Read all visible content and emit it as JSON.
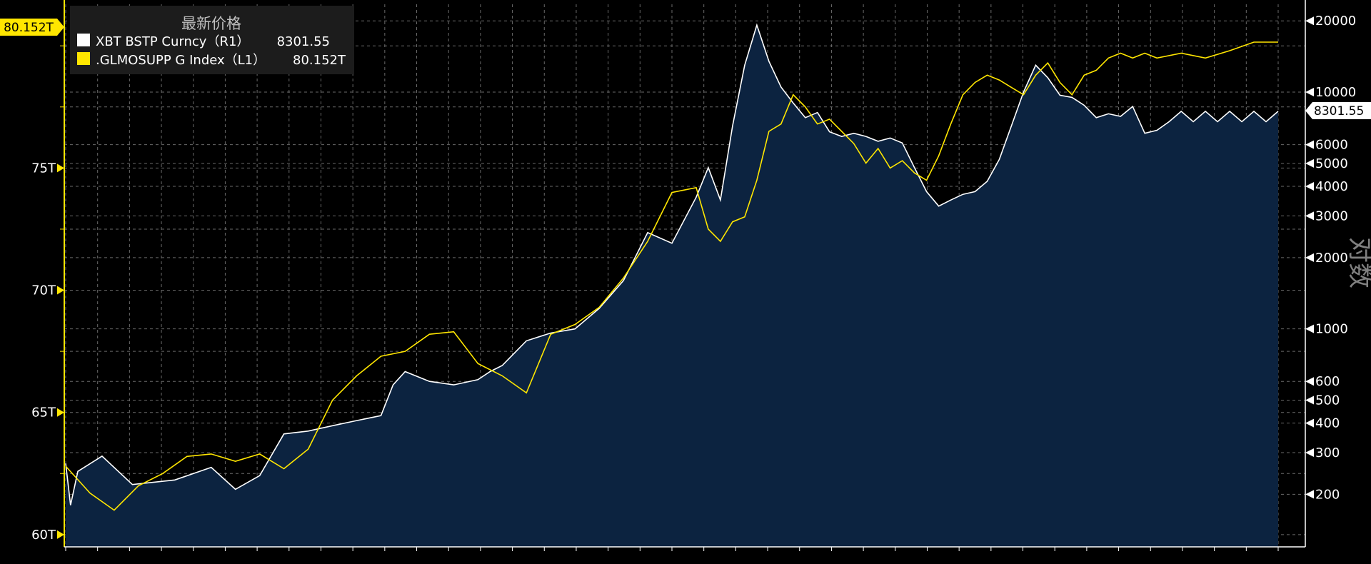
{
  "chart_data": {
    "type": "line",
    "legend": {
      "title": "最新价格",
      "placement": "top-left",
      "entries": [
        {
          "name": "XBT BSTP Curncy（R1）",
          "value": "8301.55",
          "color": "#ffffff"
        },
        {
          "name": ".GLMOSUPP G Index（L1）",
          "value": "80.152T",
          "color": "#ffe600"
        }
      ]
    },
    "y_left": {
      "ticks": [
        60,
        65,
        70,
        75
      ],
      "tick_labels": [
        "60T",
        "65T",
        "70T",
        "75T"
      ],
      "range": [
        59.5,
        81.7
      ],
      "last_value_tag": "80.152T"
    },
    "y_right": {
      "scale": "log",
      "label": "对数",
      "ticks": [
        200,
        300,
        400,
        500,
        600,
        1000,
        2000,
        3000,
        4000,
        5000,
        6000,
        10000,
        20000
      ],
      "tick_labels": [
        "200",
        "300",
        "400",
        "500",
        "600",
        "1000",
        "2000",
        "3000",
        "4000",
        "5000",
        "6000",
        "10000",
        "20000"
      ],
      "range": [
        120,
        23500
      ],
      "last_value_tag": "8301.55"
    },
    "grid": true,
    "colors": {
      "background": "#000000",
      "area_fill": "#0c2340",
      "grid": "#6a6a6a",
      "xbt_line": "#ffffff",
      "glmosupp_line": "#ffe600"
    },
    "series": [
      {
        "name": "XBT BSTP Curncy（R1）",
        "axis": "right",
        "style": "area",
        "x": [
          0.0,
          0.004,
          0.01,
          0.03,
          0.055,
          0.09,
          0.12,
          0.14,
          0.16,
          0.18,
          0.2,
          0.22,
          0.24,
          0.26,
          0.27,
          0.28,
          0.3,
          0.32,
          0.34,
          0.35,
          0.36,
          0.38,
          0.4,
          0.42,
          0.44,
          0.46,
          0.48,
          0.5,
          0.52,
          0.53,
          0.54,
          0.55,
          0.56,
          0.57,
          0.58,
          0.59,
          0.6,
          0.61,
          0.62,
          0.63,
          0.64,
          0.65,
          0.66,
          0.67,
          0.68,
          0.69,
          0.7,
          0.71,
          0.72,
          0.73,
          0.74,
          0.75,
          0.76,
          0.77,
          0.78,
          0.79,
          0.8,
          0.81,
          0.82,
          0.83,
          0.84,
          0.85,
          0.86,
          0.87,
          0.88,
          0.89,
          0.9,
          0.91,
          0.92,
          0.93,
          0.94,
          0.95,
          0.96,
          0.97,
          0.98,
          0.99,
          1.0
        ],
        "values": [
          270,
          180,
          250,
          290,
          220,
          230,
          260,
          210,
          240,
          360,
          370,
          390,
          410,
          430,
          580,
          660,
          600,
          580,
          610,
          660,
          700,
          890,
          960,
          1000,
          1220,
          1600,
          2550,
          2300,
          3600,
          4800,
          3500,
          7200,
          13000,
          19200,
          13500,
          10500,
          9000,
          7800,
          8200,
          6800,
          6500,
          6700,
          6500,
          6200,
          6400,
          6100,
          4800,
          3800,
          3300,
          3500,
          3700,
          3800,
          4200,
          5200,
          7200,
          10000,
          13000,
          11500,
          9700,
          9500,
          8800,
          7800,
          8100,
          7900,
          8700,
          6700,
          6900,
          7500,
          8301.55,
          7500,
          8301.55,
          7500,
          8301.55,
          7500,
          8301.55,
          7500,
          8301.55
        ]
      },
      {
        "name": ".GLMOSUPP G Index（L1）",
        "axis": "left",
        "style": "line",
        "x": [
          0.0,
          0.02,
          0.04,
          0.06,
          0.08,
          0.1,
          0.12,
          0.14,
          0.16,
          0.18,
          0.2,
          0.22,
          0.24,
          0.26,
          0.28,
          0.3,
          0.32,
          0.34,
          0.36,
          0.38,
          0.4,
          0.42,
          0.44,
          0.46,
          0.48,
          0.5,
          0.52,
          0.53,
          0.54,
          0.55,
          0.56,
          0.57,
          0.58,
          0.59,
          0.6,
          0.61,
          0.62,
          0.63,
          0.64,
          0.65,
          0.66,
          0.67,
          0.68,
          0.69,
          0.7,
          0.71,
          0.72,
          0.73,
          0.74,
          0.75,
          0.76,
          0.77,
          0.78,
          0.79,
          0.8,
          0.81,
          0.82,
          0.83,
          0.84,
          0.85,
          0.86,
          0.87,
          0.88,
          0.89,
          0.9,
          0.92,
          0.94,
          0.96,
          0.98,
          1.0
        ],
        "values": [
          62.8,
          61.7,
          61.0,
          62.0,
          62.5,
          63.2,
          63.3,
          63.0,
          63.3,
          62.7,
          63.5,
          65.5,
          66.5,
          67.3,
          67.5,
          68.2,
          68.3,
          67.0,
          66.5,
          65.8,
          68.2,
          68.6,
          69.3,
          70.5,
          72.0,
          74.0,
          74.2,
          72.5,
          72.0,
          72.8,
          73.0,
          74.5,
          76.5,
          76.8,
          78.0,
          77.5,
          76.8,
          77.0,
          76.5,
          76.0,
          75.2,
          75.8,
          75.0,
          75.3,
          74.8,
          74.5,
          75.5,
          76.8,
          78.0,
          78.5,
          78.8,
          78.6,
          78.3,
          78.0,
          78.8,
          79.3,
          78.5,
          78.0,
          78.8,
          79.0,
          79.5,
          79.7,
          79.5,
          79.7,
          79.5,
          79.7,
          79.5,
          79.8,
          80.152,
          80.152
        ]
      }
    ]
  }
}
